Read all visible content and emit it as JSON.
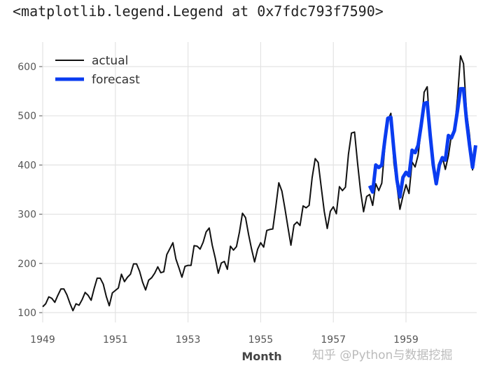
{
  "output_text": "<matplotlib.legend.Legend at 0x7fdc793f7590>",
  "watermark": "知乎 @Python与数据挖掘",
  "chart_data": {
    "type": "line",
    "title": "",
    "xlabel": "Month",
    "ylabel": "",
    "xlim": [
      1949,
      1960.917
    ],
    "ylim": [
      90,
      650
    ],
    "grid": true,
    "legend_placement": "top-left",
    "x_ticks": [
      "1949",
      "1951",
      "1953",
      "1955",
      "1957",
      "1959"
    ],
    "y_ticks": [
      "100",
      "200",
      "300",
      "400",
      "500",
      "600"
    ],
    "colors": {
      "actual": "#111111",
      "forecast": "#0a3cf0"
    },
    "series": [
      {
        "name": "actual",
        "start": 1949,
        "step_months": 1,
        "values": [
          112,
          118,
          132,
          129,
          121,
          135,
          148,
          148,
          136,
          119,
          104,
          118,
          115,
          126,
          141,
          135,
          125,
          149,
          170,
          170,
          158,
          133,
          114,
          140,
          145,
          150,
          178,
          163,
          172,
          178,
          199,
          199,
          184,
          162,
          146,
          166,
          171,
          180,
          193,
          181,
          183,
          218,
          230,
          242,
          209,
          191,
          172,
          194,
          196,
          196,
          236,
          235,
          229,
          243,
          264,
          272,
          237,
          211,
          180,
          201,
          204,
          188,
          235,
          227,
          234,
          264,
          302,
          293,
          259,
          229,
          203,
          229,
          242,
          233,
          267,
          269,
          270,
          315,
          364,
          347,
          312,
          274,
          237,
          278,
          284,
          277,
          317,
          313,
          318,
          374,
          413,
          405,
          355,
          306,
          271,
          306,
          315,
          301,
          356,
          348,
          355,
          422,
          465,
          467,
          404,
          347,
          305,
          336,
          340,
          318,
          362,
          348,
          363,
          435,
          491,
          505,
          404,
          359,
          310,
          337,
          360,
          342,
          406,
          396,
          420,
          472,
          548,
          559,
          463,
          407,
          362,
          405,
          417,
          391,
          419,
          461,
          472,
          535,
          622,
          606,
          508,
          461,
          390,
          432
        ]
      },
      {
        "name": "forecast",
        "start": 1958,
        "step_months": 1,
        "values": [
          358,
          345,
          400,
          395,
          400,
          450,
          495,
          497,
          430,
          370,
          335,
          375,
          385,
          378,
          430,
          425,
          440,
          480,
          525,
          527,
          460,
          400,
          362,
          400,
          415,
          410,
          460,
          455,
          470,
          510,
          555,
          555,
          490,
          440,
          395,
          440
        ]
      }
    ]
  }
}
